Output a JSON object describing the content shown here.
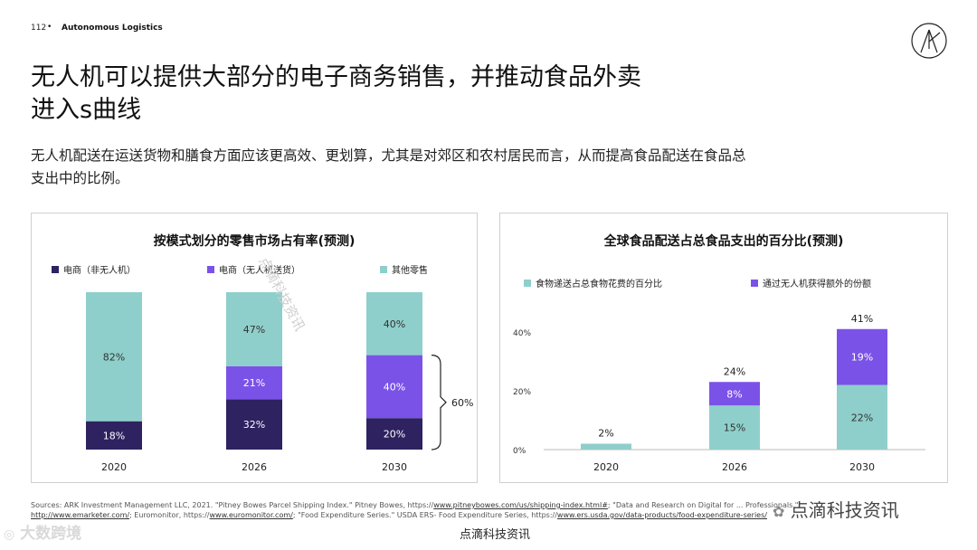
{
  "header": {
    "page_number": "112",
    "brand": "Autonomous Logistics"
  },
  "title_line1": "无人机可以提供大部分的电子商务销售，并推动食品外卖",
  "title_line2": "进入s曲线",
  "subtitle_line1": "无人机配送在运送货物和膳食方面应该更高效、更划算，尤其是对郊区和农村居民而言，从而提高食品配送在食品总",
  "subtitle_line2": "支出中的比例。",
  "colors": {
    "navy": "#2e2260",
    "purple": "#7b52e8",
    "teal": "#8ecfcb"
  },
  "chart_data": [
    {
      "type": "bar",
      "stacked": true,
      "title": "按模式划分的零售市场占有率(预测)",
      "categories": [
        "2020",
        "2026",
        "2030"
      ],
      "series": [
        {
          "name": "电商（非无人机）",
          "values": [
            18,
            32,
            20
          ],
          "labels": [
            "18%",
            "32%",
            "20%"
          ],
          "color": "#2e2260"
        },
        {
          "name": "电商（无人机送货）",
          "values": [
            0,
            21,
            40
          ],
          "labels": [
            "",
            "21%",
            "40%"
          ],
          "color": "#7b52e8"
        },
        {
          "name": "其他零售",
          "values": [
            82,
            47,
            40
          ],
          "labels": [
            "82%",
            "47%",
            "40%"
          ],
          "color": "#8ecfcb"
        }
      ],
      "annotation": "60%",
      "ylim": [
        0,
        100
      ],
      "legend": "top"
    },
    {
      "type": "bar",
      "stacked": true,
      "title": "全球食品配送占总食品支出的百分比(预测)",
      "categories": [
        "2020",
        "2026",
        "2030"
      ],
      "series": [
        {
          "name": "食物递送占总食物花费的百分比",
          "values": [
            2,
            15,
            22
          ],
          "labels": [
            "",
            "15%",
            "22%"
          ],
          "color": "#8ecfcb"
        },
        {
          "name": "通过无人机获得额外的份额",
          "values": [
            0,
            8,
            19
          ],
          "labels": [
            "",
            "8%",
            "19%"
          ],
          "color": "#7b52e8"
        }
      ],
      "totals": [
        "2%",
        "24%",
        "41%"
      ],
      "yticks": [
        "0%",
        "20%",
        "40%"
      ],
      "ylim": [
        0,
        45
      ],
      "legend": "top"
    }
  ],
  "sources_line1": "Sources: ARK Investment Management LLC, 2021. \"Pitney Bowes Parcel Shipping Index.\" Pitney Bowes, https://",
  "sources_link1": "www.pitneybowes.com/us/shipping-index.html#",
  "sources_line1b": "; \"Data and Research on Digital for ... Professionals.\"",
  "sources_link2": "http://www.emarketer.com/",
  "sources_line2a": "; Euromonitor, https://",
  "sources_link3": "www.euromonitor.com/",
  "sources_line2b": "; \"Food Expenditure Series.\" USDA ERS- Food Expenditure Series, https://",
  "sources_link4": "www.ers.usda.gov/data-products/food-expenditure-series/",
  "watermark_diagonal": "点滴科技资讯",
  "watermark_left": "大数跨境",
  "watermark_right": "点滴科技资讯",
  "footer_text": "点滴科技资讯"
}
